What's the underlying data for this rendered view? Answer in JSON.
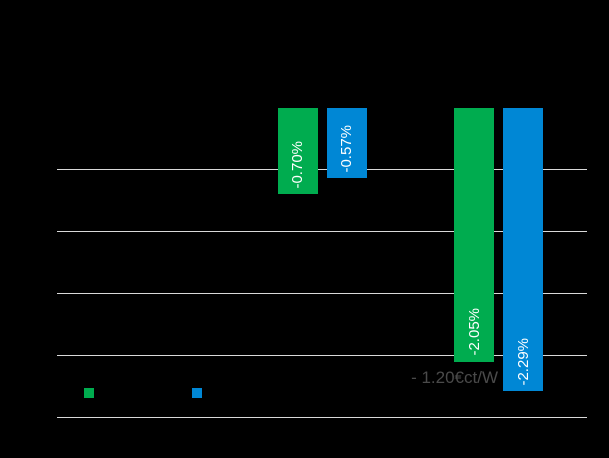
{
  "colors": {
    "background": "#000000",
    "gridline": "#D9D9D9",
    "series_green": "#00AC4F",
    "series_blue": "#0087D5",
    "bar_label_text": "#FFFFFF",
    "annotation_text": "#4A4A4A"
  },
  "chart_data": {
    "type": "bar",
    "unit": "%",
    "orientation": "vertical-negative",
    "series": [
      {
        "name": "green-series",
        "color": "#00AC4F",
        "values": [
          -0.7,
          -2.05
        ],
        "labels": [
          "-0.70%",
          "-2.05%"
        ]
      },
      {
        "name": "blue-series",
        "color": "#0087D5",
        "values": [
          -0.57,
          -2.29
        ],
        "labels": [
          "-0.57%",
          "-2.29%"
        ]
      }
    ],
    "y_axis": {
      "max": 0,
      "min": -2.5,
      "gridline_step": 0.5,
      "gridlines_pct": [
        -0.5,
        -1.0,
        -1.5,
        -2.0,
        -2.5
      ],
      "tick_labels_visible": false
    },
    "x_axis": {
      "category_labels_visible": false
    },
    "annotation": {
      "text": "- 1.20€ct/W"
    },
    "legend": {
      "position": "bottom-left",
      "labels_visible": false
    }
  }
}
